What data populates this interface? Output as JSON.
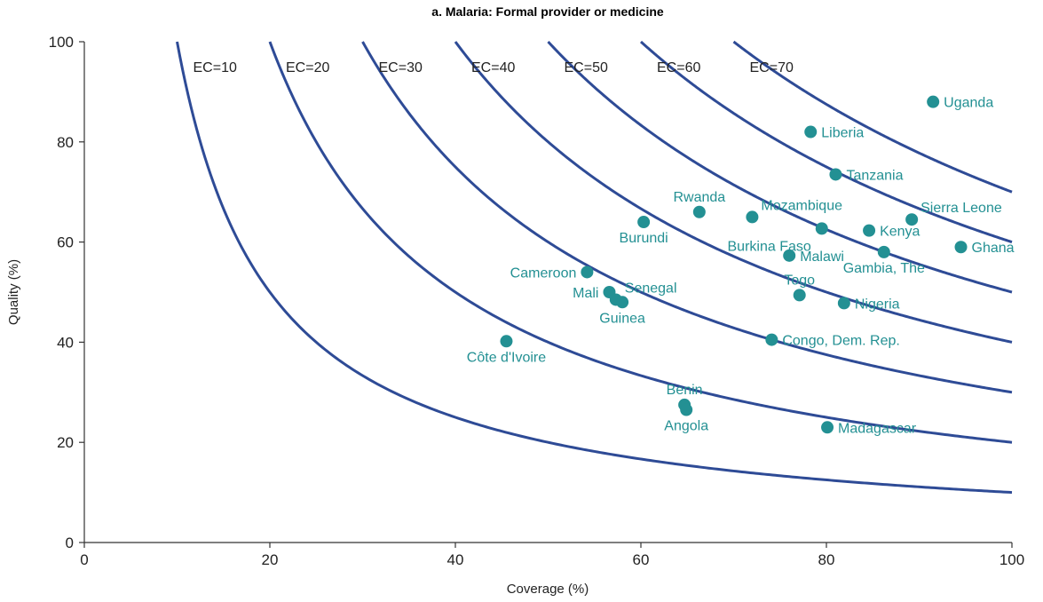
{
  "chart_data": {
    "type": "scatter",
    "title": "a. Malaria: Formal provider or medicine",
    "xlabel": "Coverage (%)",
    "ylabel": "Quality (%)",
    "xlim": [
      0,
      100
    ],
    "ylim": [
      0,
      100
    ],
    "xticks": [
      0,
      20,
      40,
      60,
      80,
      100
    ],
    "yticks": [
      0,
      20,
      40,
      60,
      80,
      100
    ],
    "grid": false,
    "legend": "none",
    "colors": {
      "curve": "#2e4b96",
      "point": "#239093",
      "axis": "#333333"
    },
    "curves": [
      {
        "label": "EC=10",
        "ec": 10
      },
      {
        "label": "EC=20",
        "ec": 20
      },
      {
        "label": "EC=30",
        "ec": 30
      },
      {
        "label": "EC=40",
        "ec": 40
      },
      {
        "label": "EC=50",
        "ec": 50
      },
      {
        "label": "EC=60",
        "ec": 60
      },
      {
        "label": "EC=70",
        "ec": 70
      }
    ],
    "points": [
      {
        "label": "Uganda",
        "x": 91.5,
        "y": 88,
        "pos": "right"
      },
      {
        "label": "Liberia",
        "x": 78.3,
        "y": 82,
        "pos": "right"
      },
      {
        "label": "Tanzania",
        "x": 81.0,
        "y": 73.5,
        "pos": "right"
      },
      {
        "label": "Sierra Leone",
        "x": 89.2,
        "y": 64.5,
        "pos": "upright"
      },
      {
        "label": "Kenya",
        "x": 84.6,
        "y": 62.3,
        "pos": "right"
      },
      {
        "label": "Ghana",
        "x": 94.5,
        "y": 59,
        "pos": "right"
      },
      {
        "label": "Gambia, The",
        "x": 86.2,
        "y": 58,
        "pos": "below"
      },
      {
        "label": "Rwanda",
        "x": 66.3,
        "y": 66,
        "pos": "above"
      },
      {
        "label": "Mozambique",
        "x": 72.0,
        "y": 65,
        "pos": "upright"
      },
      {
        "label": "Burkina Faso",
        "x": 79.5,
        "y": 62.7,
        "pos": "belowleft"
      },
      {
        "label": "Burundi",
        "x": 60.3,
        "y": 64,
        "pos": "below"
      },
      {
        "label": "Malawi",
        "x": 76.0,
        "y": 57.3,
        "pos": "right"
      },
      {
        "label": "Cameroon",
        "x": 54.2,
        "y": 54,
        "pos": "left"
      },
      {
        "label": "Mali",
        "x": 56.6,
        "y": 50,
        "pos": "left"
      },
      {
        "label": "Senegal",
        "x": 57.3,
        "y": 48.5,
        "pos": "upright"
      },
      {
        "label": "Guinea",
        "x": 58.0,
        "y": 48,
        "pos": "below"
      },
      {
        "label": "Togo",
        "x": 77.1,
        "y": 49.4,
        "pos": "above"
      },
      {
        "label": "Nigeria",
        "x": 81.9,
        "y": 47.8,
        "pos": "right"
      },
      {
        "label": "Congo, Dem. Rep.",
        "x": 74.1,
        "y": 40.5,
        "pos": "right"
      },
      {
        "label": "Côte d'Ivoire",
        "x": 45.5,
        "y": 40.2,
        "pos": "below"
      },
      {
        "label": "Benin",
        "x": 64.7,
        "y": 27.5,
        "pos": "above"
      },
      {
        "label": "Angola",
        "x": 64.9,
        "y": 26.5,
        "pos": "below"
      },
      {
        "label": "Madagascar",
        "x": 80.1,
        "y": 23,
        "pos": "right"
      }
    ]
  }
}
